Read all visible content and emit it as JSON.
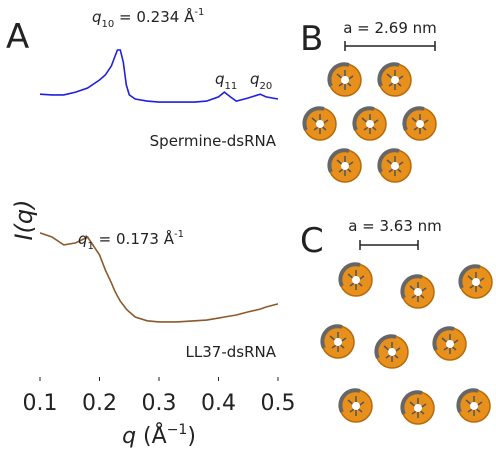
{
  "chart_data": {
    "type": "line",
    "panel_letter": "A",
    "x_label": {
      "symbol": "q",
      "unit": "(Å",
      "sup": "−1",
      "close": ")"
    },
    "y_label": "I(q)",
    "x": [
      0.1,
      0.12,
      0.14,
      0.16,
      0.18,
      0.2,
      0.21,
      0.22,
      0.225,
      0.23,
      0.235,
      0.24,
      0.245,
      0.25,
      0.26,
      0.28,
      0.3,
      0.33,
      0.36,
      0.38,
      0.4,
      0.41,
      0.42,
      0.43,
      0.45,
      0.47,
      0.48,
      0.5
    ],
    "series": [
      {
        "name": "Spermine-dsRNA",
        "color": "#1f1fe0",
        "values": [
          81.4,
          81.2,
          81.2,
          82.0,
          83.2,
          85.5,
          87.0,
          89.6,
          91.9,
          94.2,
          94.2,
          90.7,
          84.1,
          81.2,
          80.0,
          79.4,
          79.1,
          79.1,
          79.1,
          79.4,
          80.6,
          82.0,
          80.6,
          79.4,
          80.3,
          81.4,
          80.6,
          80.0
        ]
      },
      {
        "name": "LL37-dsRNA",
        "color": "#8b5a2b",
        "values": [
          41.2,
          40.0,
          37.7,
          38.3,
          40.0,
          34.8,
          30.4,
          26.7,
          24.6,
          22.9,
          21.4,
          20.3,
          19.1,
          18.3,
          16.8,
          15.7,
          15.4,
          15.4,
          15.7,
          15.9,
          16.5,
          16.8,
          17.1,
          17.4,
          18.3,
          19.1,
          19.7,
          20.6
        ]
      }
    ],
    "xlim": [
      0.1,
      0.5
    ],
    "xticks": [
      0.1,
      0.2,
      0.3,
      0.4,
      0.5
    ],
    "ylim": [
      0,
      100
    ],
    "annotations": [
      {
        "base": "q",
        "sub": "10",
        "text": " = 0.234 Å",
        "sup": "-1"
      },
      {
        "base": "q",
        "sub": "11"
      },
      {
        "base": "q",
        "sub": "20"
      },
      {
        "base": "q",
        "sub": "1",
        "text": " = 0.173 Å",
        "sup": "-1"
      }
    ]
  },
  "panels": [
    {
      "letter": "B",
      "scale_label": "a = 2.69 nm"
    },
    {
      "letter": "C",
      "scale_label": "a = 3.63 nm"
    }
  ]
}
